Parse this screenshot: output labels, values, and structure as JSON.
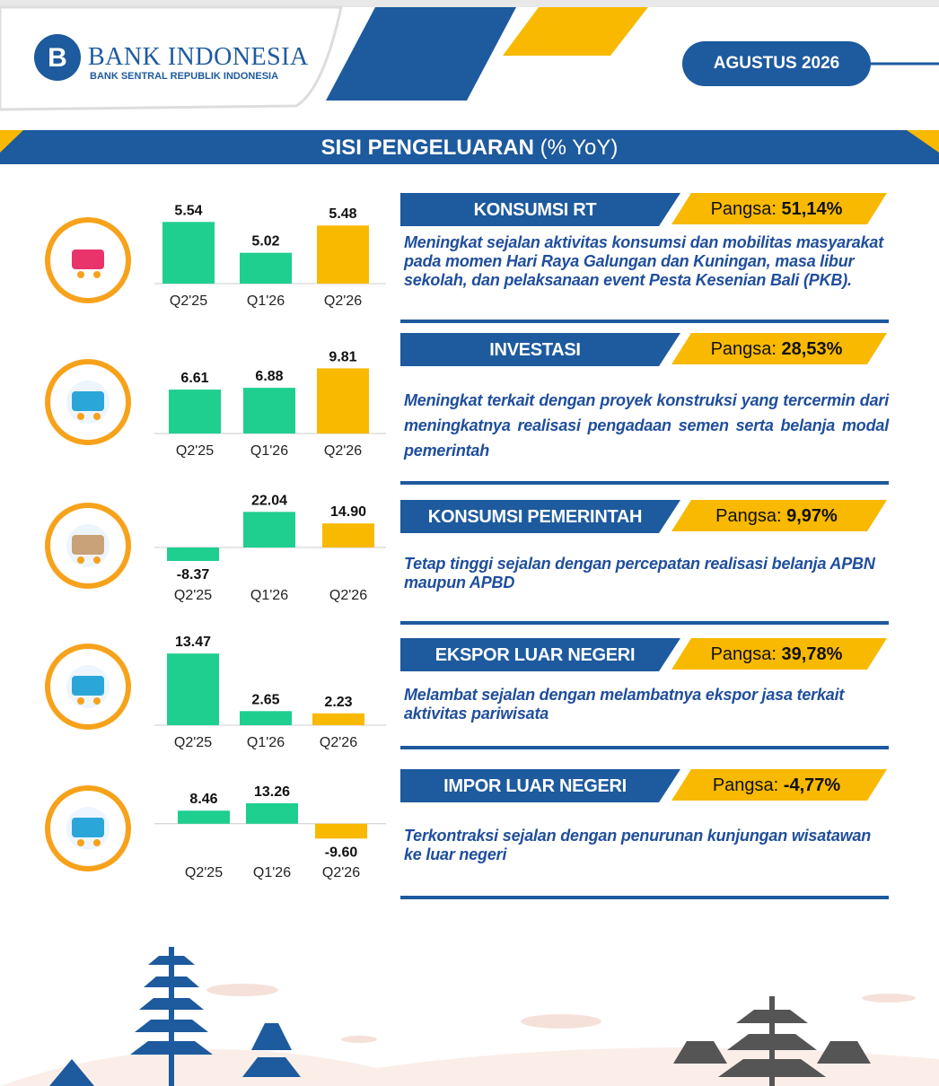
{
  "header": {
    "logo_title": "BANK INDONESIA",
    "logo_subtitle": "BANK SENTRAL REPUBLIK INDONESIA",
    "date": "AGUSTUS 2026"
  },
  "section": {
    "title": "SISI PENGELUARAN",
    "unit": "(% YoY)"
  },
  "items": [
    {
      "name": "KONSUMSI RT",
      "share_label": "Pangsa:",
      "share": "51,14%",
      "description": "Meningkat sejalan aktivitas konsumsi dan mobilitas masyarakat pada momen Hari Raya Galungan dan Kuningan, masa libur sekolah, dan pelaksanaan event Pesta Kesenian Bali (PKB).",
      "chart": {
        "type": "bar",
        "categories": [
          "Q2'25",
          "Q1'26",
          "Q2'26"
        ],
        "values": [
          5.54,
          5.02,
          5.48
        ],
        "value_labels": [
          "5.54",
          "5.02",
          "5.48"
        ],
        "colors": [
          "#1fcf8f",
          "#1fcf8f",
          "#f8b900"
        ],
        "ylim": [
          4.5,
          5.65
        ]
      }
    },
    {
      "name": "INVESTASI",
      "share_label": "Pangsa:",
      "share": "28,53%",
      "description": "Meningkat terkait dengan proyek konstruksi yang tercermin dari meningkatnya realisasi pengadaan semen serta belanja modal pemerintah",
      "chart": {
        "type": "bar",
        "categories": [
          "Q2'25",
          "Q1'26",
          "Q2'26"
        ],
        "values": [
          6.61,
          6.88,
          9.81
        ],
        "value_labels": [
          "6.61",
          "6.88",
          "9.81"
        ],
        "colors": [
          "#1fcf8f",
          "#1fcf8f",
          "#f8b900"
        ],
        "ylim": [
          0,
          10
        ]
      }
    },
    {
      "name": "KONSUMSI PEMERINTAH",
      "share_label": "Pangsa:",
      "share": "9,97%",
      "description": "Tetap tinggi sejalan dengan percepatan realisasi belanja APBN maupun APBD",
      "chart": {
        "type": "bar",
        "categories": [
          "Q2'25",
          "Q1'26",
          "Q2'26"
        ],
        "values": [
          -8.37,
          22.04,
          14.9
        ],
        "value_labels": [
          "-8.37",
          "22.04",
          "14.90"
        ],
        "colors": [
          "#1fcf8f",
          "#1fcf8f",
          "#f8b900"
        ],
        "ylim": [
          -10,
          25
        ]
      }
    },
    {
      "name": "EKSPOR LUAR NEGERI",
      "share_label": "Pangsa:",
      "share": "39,78%",
      "description": "Melambat sejalan dengan melambatnya ekspor jasa terkait aktivitas pariwisata",
      "chart": {
        "type": "bar",
        "categories": [
          "Q2'25",
          "Q1'26",
          "Q2'26"
        ],
        "values": [
          13.47,
          2.65,
          2.23
        ],
        "value_labels": [
          "13.47",
          "2.65",
          "2.23"
        ],
        "colors": [
          "#1fcf8f",
          "#1fcf8f",
          "#f8b900"
        ],
        "ylim": [
          0,
          14
        ]
      }
    },
    {
      "name": "IMPOR LUAR NEGERI",
      "share_label": "Pangsa:",
      "share": "-4,77%",
      "description": "Terkontraksi sejalan dengan penurunan kunjungan wisatawan ke luar negeri",
      "chart": {
        "type": "bar",
        "categories": [
          "Q2'25",
          "Q1'26",
          "Q2'26"
        ],
        "values": [
          8.46,
          13.26,
          -9.6
        ],
        "value_labels": [
          "8.46",
          "13.26",
          "-9.60"
        ],
        "colors": [
          "#1fcf8f",
          "#1fcf8f",
          "#f8b900"
        ],
        "ylim": [
          -10,
          15
        ]
      }
    }
  ]
}
